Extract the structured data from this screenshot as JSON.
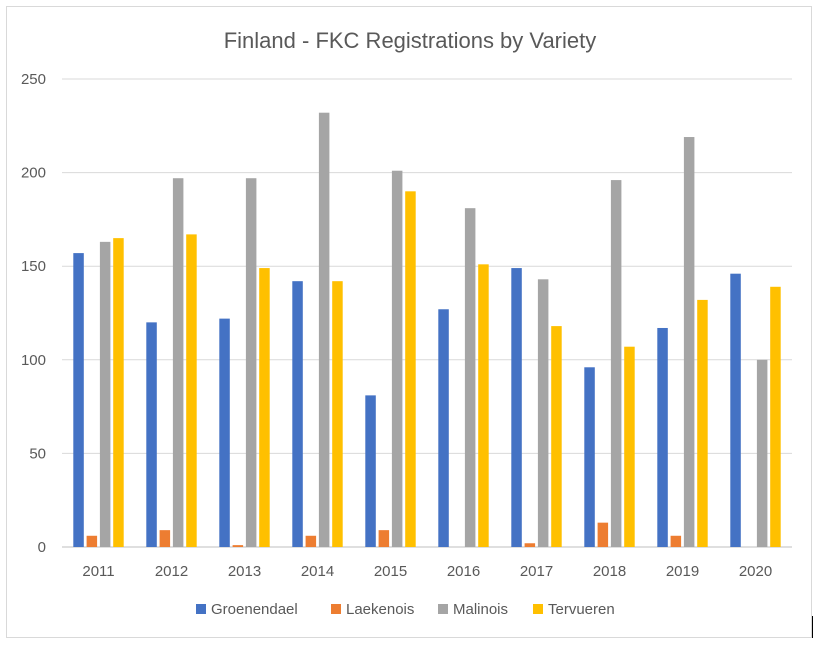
{
  "chart_data": {
    "type": "bar",
    "title": "Finland - FKC Registrations by Variety",
    "xlabel": "",
    "ylabel": "",
    "ylim": [
      0,
      250
    ],
    "yticks": [
      "0",
      "50",
      "100",
      "150",
      "200",
      "250"
    ],
    "grid": true,
    "legend_position": "bottom",
    "categories": [
      "2011",
      "2012",
      "2013",
      "2014",
      "2015",
      "2016",
      "2017",
      "2018",
      "2019",
      "2020"
    ],
    "series": [
      {
        "name": "Groenendael",
        "color": "#4472c4",
        "values": [
          157,
          120,
          122,
          142,
          81,
          127,
          149,
          96,
          117,
          146
        ]
      },
      {
        "name": "Laekenois",
        "color": "#ed7d31",
        "values": [
          6,
          9,
          1,
          6,
          9,
          0,
          2,
          13,
          6,
          0
        ]
      },
      {
        "name": "Malinois",
        "color": "#a5a5a5",
        "values": [
          163,
          197,
          197,
          232,
          201,
          181,
          143,
          196,
          219,
          100
        ]
      },
      {
        "name": "Tervueren",
        "color": "#ffc000",
        "values": [
          165,
          167,
          149,
          142,
          190,
          151,
          118,
          107,
          132,
          139
        ]
      }
    ]
  }
}
